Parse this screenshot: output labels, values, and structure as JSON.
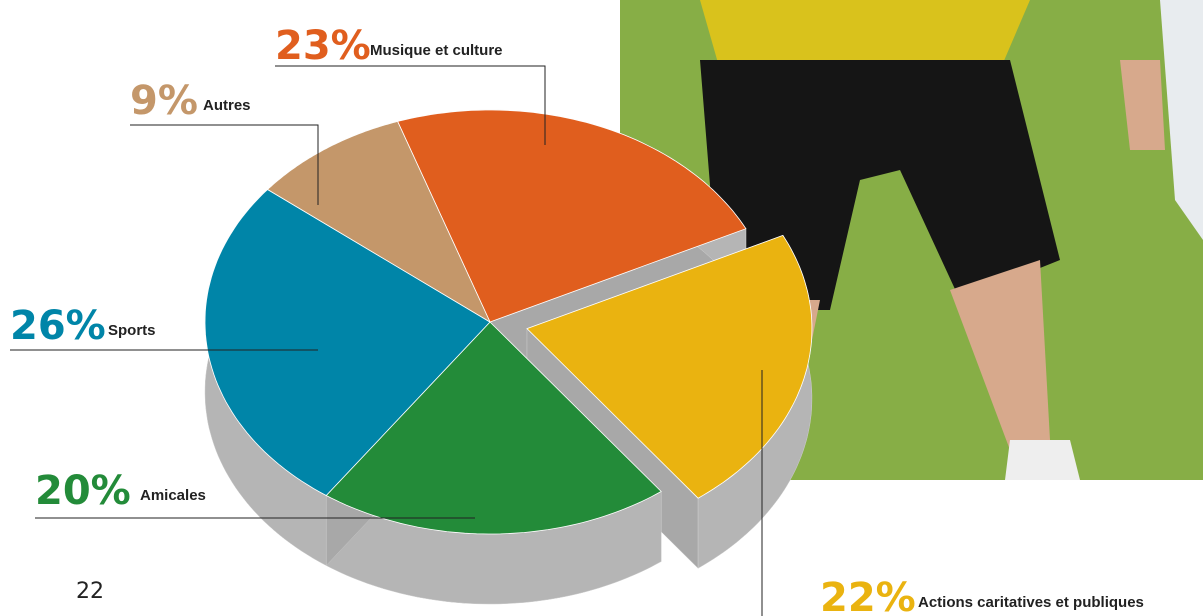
{
  "chart_data": {
    "type": "pie",
    "categories": [
      "Musique et culture",
      "Actions caritatives et publiques",
      "Amicales",
      "Sports",
      "Autres"
    ],
    "values": [
      23,
      22,
      20,
      26,
      9
    ],
    "value_labels": [
      "23%",
      "22%",
      "20%",
      "26%",
      "9%"
    ],
    "colors": [
      "#e05e1e",
      "#eab310",
      "#238b39",
      "#0085a8",
      "#c4976a"
    ]
  },
  "page_number": "22"
}
